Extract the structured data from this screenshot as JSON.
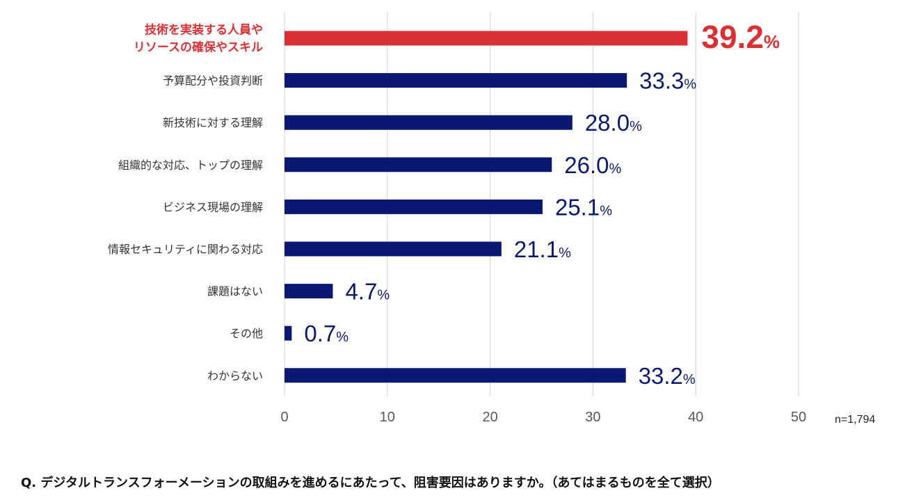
{
  "chart_data": {
    "type": "bar",
    "orientation": "horizontal",
    "categories": [
      [
        "技術を実装する人員や",
        "リソースの確保やスキル"
      ],
      [
        "予算配分や投資判断"
      ],
      [
        "新技術に対する理解"
      ],
      [
        "組織的な対応、トップの理解"
      ],
      [
        "ビジネス現場の理解"
      ],
      [
        "情報セキュリティに関わる対応"
      ],
      [
        "課題はない"
      ],
      [
        "その他"
      ],
      [
        "わからない"
      ]
    ],
    "values": [
      39.2,
      33.3,
      28.0,
      26.0,
      25.1,
      21.1,
      4.7,
      0.7,
      33.2
    ],
    "value_labels": [
      "39.2",
      "33.3",
      "28.0",
      "26.0",
      "25.1",
      "21.1",
      "4.7",
      "0.7",
      "33.2"
    ],
    "value_unit": "%",
    "highlight_index": 0,
    "xlim": [
      0,
      50
    ],
    "xticks": [
      0,
      10,
      20,
      30,
      40,
      50
    ],
    "grid": "vertical",
    "colors": {
      "bar": "#0a1872",
      "highlight": "#d93035",
      "grid": "#d0d0d0"
    }
  },
  "sample_size": "n=1,794",
  "question": "Q. デジタルトランスフォーメーションの取組みを進めるにあたって、阻害要因はありますか。（あてはまるものを全て選択）"
}
